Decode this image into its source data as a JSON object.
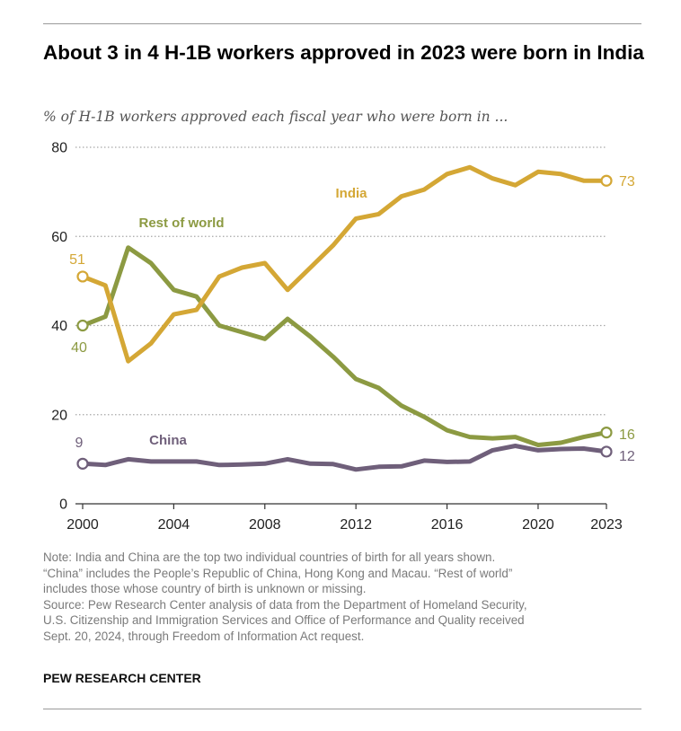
{
  "title": "About 3 in 4 H-1B workers approved in 2023 were born in India",
  "subtitle": "% of H-1B workers approved each fiscal year who were born in ...",
  "notes": [
    "Note: India and China are the top two individual countries of birth for all years shown.",
    "“China” includes the People’s Republic of China, Hong Kong and Macau. “Rest of world”",
    "includes those whose country of birth is unknown or missing.",
    "Source: Pew Research Center analysis of data from the Department of Homeland Security,",
    "U.S. Citizenship and Immigration Services and Office of Performance and Quality received",
    "Sept. 20, 2024, through Freedom of Information Act request."
  ],
  "footer": "PEW RESEARCH CENTER",
  "chart_data": {
    "type": "line",
    "x": [
      2000,
      2001,
      2002,
      2003,
      2004,
      2005,
      2006,
      2007,
      2008,
      2009,
      2010,
      2011,
      2012,
      2013,
      2014,
      2015,
      2016,
      2017,
      2018,
      2019,
      2020,
      2021,
      2022,
      2023
    ],
    "xlim": [
      2000,
      2023
    ],
    "ylim": [
      0,
      80
    ],
    "x_ticks": [
      2000,
      2004,
      2008,
      2012,
      2016,
      2020,
      2023
    ],
    "y_ticks": [
      0,
      20,
      40,
      60,
      80
    ],
    "grid": "horizontal dotted",
    "legend": "inline labels",
    "series": [
      {
        "name": "India",
        "color": "#d4a735",
        "values": [
          51,
          49,
          32,
          36,
          42.5,
          43.5,
          51,
          53,
          54,
          48,
          53,
          58,
          64,
          65,
          69,
          70.5,
          74,
          75.5,
          73,
          71.5,
          74.5,
          74,
          72.5,
          72.5
        ],
        "start_label": "51",
        "end_label": "73"
      },
      {
        "name": "Rest of world",
        "color": "#8c9a42",
        "values": [
          40,
          42,
          57.5,
          54,
          48,
          46.5,
          40,
          38.5,
          37,
          41.5,
          37.5,
          33,
          28,
          26,
          22,
          19.5,
          16.5,
          15,
          14.7,
          15,
          13.2,
          13.7,
          15,
          16
        ],
        "start_label": "40",
        "end_label": "16"
      },
      {
        "name": "China",
        "color": "#6f5f7a",
        "values": [
          9,
          8.7,
          10,
          9.5,
          9.5,
          9.5,
          8.7,
          8.8,
          9,
          10,
          9,
          8.9,
          7.7,
          8.3,
          8.4,
          9.7,
          9.4,
          9.5,
          12,
          13,
          12,
          12.3,
          12.4,
          11.7
        ],
        "start_label": "9",
        "end_label": "12"
      }
    ]
  }
}
